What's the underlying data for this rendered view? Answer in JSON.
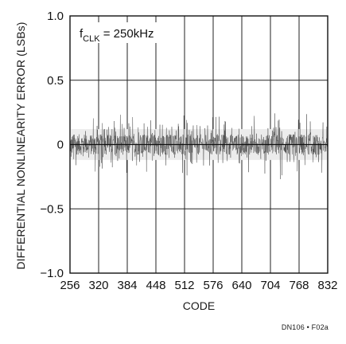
{
  "chart_data": {
    "type": "scatter",
    "title": "",
    "annotation": {
      "main": "f",
      "sub": "CLK",
      "rest": " = 250kHz"
    },
    "xlabel": "CODE",
    "ylabel": "DIFFERENTIAL NONLINEARITY ERROR (LSBs)",
    "xlim": [
      256,
      832
    ],
    "ylim": [
      -1.0,
      1.0
    ],
    "xticks": [
      "256",
      "320",
      "384",
      "448",
      "512",
      "576",
      "640",
      "704",
      "768",
      "832"
    ],
    "yticks": [
      "1.0",
      "0.5",
      "0",
      "−0.5",
      "−1.0"
    ],
    "grid": true,
    "series": [
      {
        "x": [
          256,
          832
        ],
        "band_upper": [
          0.12,
          0.12
        ],
        "band_lower": [
          -0.12,
          -0.12
        ],
        "spike_max": 0.26,
        "spike_min": -0.28
      }
    ]
  },
  "footer": {
    "figure_id": "DN106 • F02a"
  }
}
